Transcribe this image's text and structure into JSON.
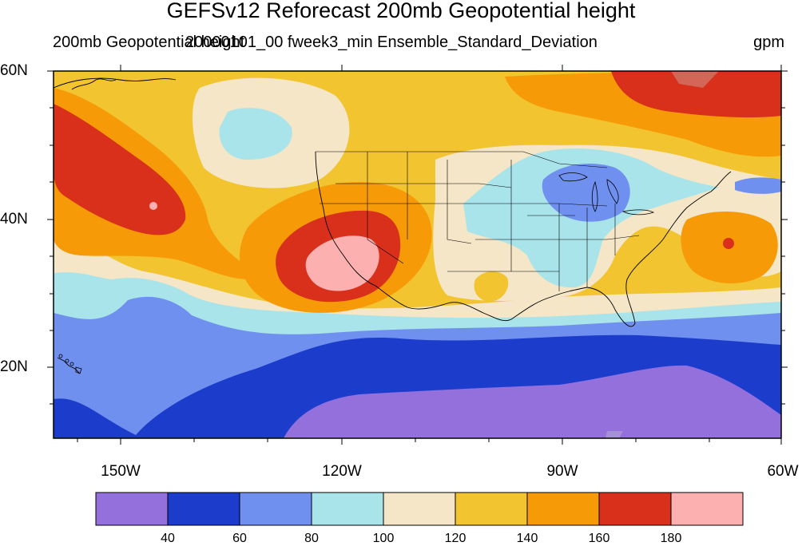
{
  "title": "GEFSv12 Reforecast 200mb Geopotential height",
  "subtitle_left": "200mb Geopotential height",
  "subtitle_center": "20000101_00 fweek3_min Ensemble_Standard_Deviation",
  "subtitle_right": "gpm",
  "latitude_labels": [
    "60N",
    "40N",
    "20N"
  ],
  "longitude_labels": [
    "150W",
    "120W",
    "90W",
    "60W"
  ],
  "colorbar": {
    "colors": [
      "#9370db",
      "#1c3ccc",
      "#7090f0",
      "#a8e4ea",
      "#f4e6c6",
      "#f2c430",
      "#f69a08",
      "#d8301a",
      "#fcb0b0"
    ],
    "labels": [
      "40",
      "60",
      "80",
      "100",
      "120",
      "140",
      "160",
      "180"
    ]
  },
  "map": {
    "extent": {
      "lon": [
        -159,
        -60
      ],
      "lat": [
        10,
        60
      ]
    },
    "region": "North America and adjacent Pacific / Atlantic",
    "features": [
      "coastlines",
      "US state boundaries",
      "Great Lakes",
      "Hawaii"
    ]
  }
}
